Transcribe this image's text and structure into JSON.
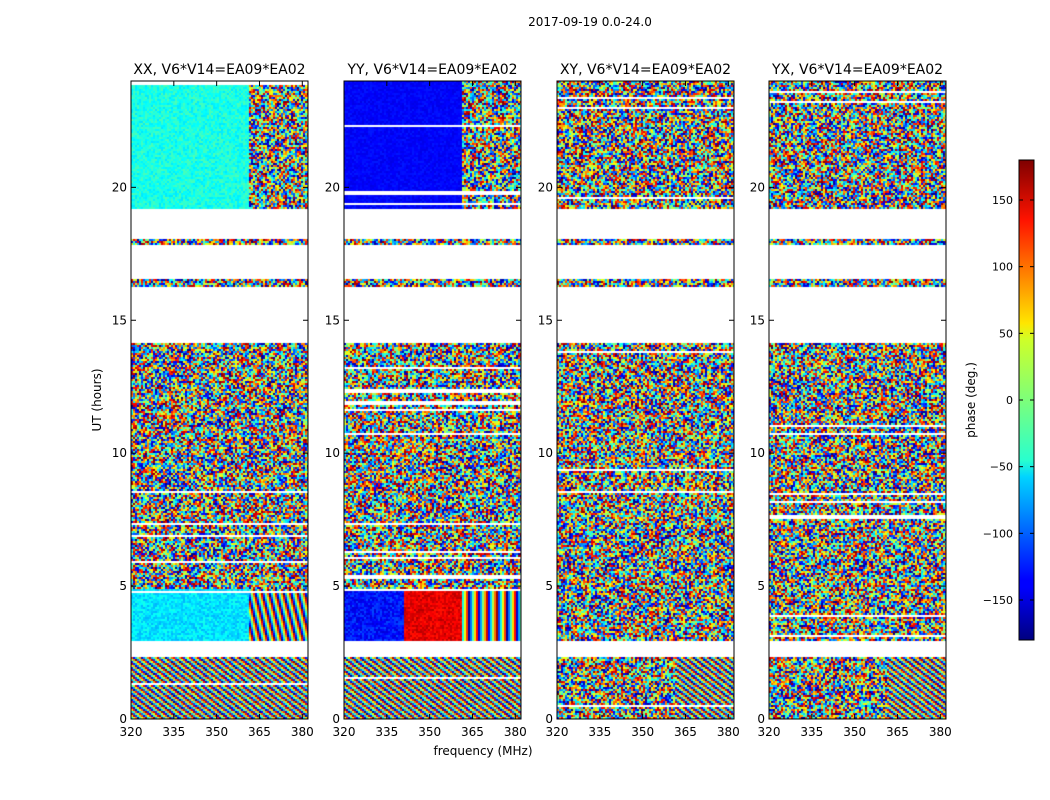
{
  "figure_title": "2017-09-19 0.0-24.0",
  "chart_data": {
    "type": "heatmap",
    "title": "2017-09-19 0.0-24.0",
    "xlabel": "frequency (MHz)",
    "ylabel": "UT (hours)",
    "xlim": [
      320,
      382
    ],
    "ylim": [
      0,
      24
    ],
    "xticks": [
      320,
      335,
      350,
      365,
      380
    ],
    "yticks": [
      0,
      5,
      10,
      15,
      20
    ],
    "panels": [
      {
        "title": "XX, V6*V14=EA09*EA02",
        "pol": "XX"
      },
      {
        "title": "YY, V6*V14=EA09*EA02",
        "pol": "YY"
      },
      {
        "title": "XY, V6*V14=EA09*EA02",
        "pol": "XY"
      },
      {
        "title": "YX, V6*V14=EA09*EA02",
        "pol": "YX"
      }
    ],
    "colorbar": {
      "label": "phase (deg.)",
      "colormap": "jet",
      "range": [
        -180,
        180
      ],
      "ticks": [
        -150,
        -100,
        -50,
        0,
        50,
        100,
        150
      ],
      "tick_labels": [
        "−150",
        "−100",
        "−50",
        "0",
        "50",
        "100",
        "150"
      ]
    },
    "data_gaps_ut": [
      [
        2.4,
        3.0
      ],
      [
        14.2,
        16.3
      ],
      [
        16.6,
        17.9
      ],
      [
        18.1,
        19.2
      ]
    ],
    "description": "Visibility phase vs frequency and UT; noisy phase in most of the band, coherent fringes at low UT and high frequencies"
  }
}
